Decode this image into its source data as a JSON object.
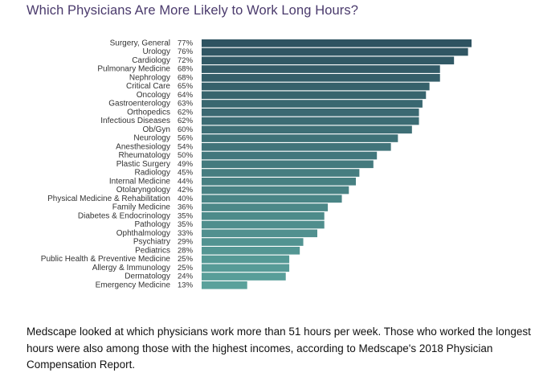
{
  "chart_data": {
    "type": "bar",
    "orientation": "horizontal",
    "title": "Which Physicians Are More Likely to Work Long Hours?",
    "unit": "%",
    "xlim": [
      0,
      77
    ],
    "grid": false,
    "legend": "none",
    "categories": [
      "Surgery, General",
      "Urology",
      "Cardiology",
      "Pulmonary Medicine",
      "Nephrology",
      "Critical Care",
      "Oncology",
      "Gastroenterology",
      "Orthopedics",
      "Infectious Diseases",
      "Ob/Gyn",
      "Neurology",
      "Anesthesiology",
      "Rheumatology",
      "Plastic Surgery",
      "Radiology",
      "Internal Medicine",
      "Otolaryngology",
      "Physical Medicine & Rehabilitation",
      "Family Medicine",
      "Diabetes & Endocrinology",
      "Pathology",
      "Ophthalmology",
      "Psychiatry",
      "Pediatrics",
      "Public Health & Preventive Medicine",
      "Allergy & Immunology",
      "Dermatology",
      "Emergency Medicine"
    ],
    "values": [
      77,
      76,
      72,
      68,
      68,
      65,
      64,
      63,
      62,
      62,
      60,
      56,
      54,
      50,
      49,
      45,
      44,
      42,
      40,
      36,
      35,
      35,
      33,
      29,
      28,
      25,
      25,
      24,
      13
    ],
    "labels": [
      "77%",
      "76%",
      "72%",
      "68%",
      "68%",
      "65%",
      "64%",
      "63%",
      "62%",
      "62%",
      "60%",
      "56%",
      "54%",
      "50%",
      "49%",
      "45%",
      "44%",
      "42%",
      "40%",
      "36%",
      "35%",
      "35%",
      "33%",
      "29%",
      "28%",
      "25%",
      "25%",
      "24%",
      "13%"
    ],
    "colors": {
      "top": "#2e5361",
      "bottom": "#5aa19b"
    }
  },
  "caption": "Medscape looked at which physicians work more than 51 hours per week. Those who worked the longest hours were also among those with the highest incomes, according to Medscape's 2018 Physician Compensation Report."
}
